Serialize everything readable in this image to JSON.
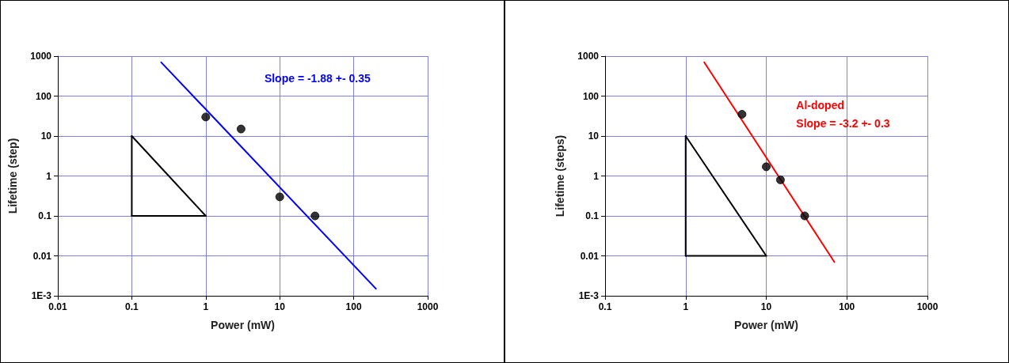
{
  "chart_data": [
    {
      "type": "scatter",
      "xlabel": "Power (mW)",
      "ylabel": "Lifetime (step)",
      "xlim": [
        0.01,
        1000
      ],
      "ylim": [
        0.001,
        1000
      ],
      "xticks": [
        0.01,
        0.1,
        1,
        10,
        100,
        1000
      ],
      "yticks": [
        {
          "value": 0.001,
          "label": "1E-3"
        },
        0.01,
        0.1,
        1,
        10,
        100,
        1000
      ],
      "log": "xy",
      "grid": true,
      "series": [
        {
          "color": "#000000",
          "marker": "circle",
          "x": [
            1,
            3,
            10,
            30
          ],
          "values": [
            30,
            15,
            0.3,
            0.1
          ]
        },
        {
          "type": "line",
          "color": "#0000ff",
          "marker": "none",
          "line_style": "solid",
          "x": [
            0.25,
            200
          ],
          "values": [
            700,
            0.0015
          ]
        },
        {
          "type": "line",
          "color": "#000000",
          "marker": "none",
          "line_style": "solid",
          "x": [
            0.1,
            1
          ],
          "values": [
            10,
            0.1
          ]
        },
        {
          "type": "line",
          "color": "#000000",
          "marker": "none",
          "line_style": "solid",
          "x": [
            0.1,
            1
          ],
          "values": [
            0.1,
            0.1
          ]
        },
        {
          "type": "line",
          "color": "#000000",
          "marker": "none",
          "line_style": "solid",
          "x": [
            0.1,
            0.1
          ],
          "values": [
            10,
            0.1
          ]
        }
      ],
      "annotations": [
        "Slope = -1.88 +- 0.35"
      ]
    },
    {
      "type": "scatter",
      "xlabel": "Power (mW)",
      "ylabel": "Lifetime (steps)",
      "xlim": [
        0.1,
        1000
      ],
      "ylim": [
        0.001,
        1000
      ],
      "xticks": [
        0.1,
        1,
        10,
        100,
        1000
      ],
      "yticks": [
        {
          "value": 0.001,
          "label": "1E-3"
        },
        0.01,
        0.1,
        1,
        10,
        100,
        1000
      ],
      "log": "xy",
      "grid": true,
      "series": [
        {
          "color": "#000000",
          "marker": "circle",
          "x": [
            5,
            10,
            15,
            30
          ],
          "values": [
            35,
            1.7,
            0.8,
            0.1
          ]
        },
        {
          "type": "line",
          "color": "#ff0000",
          "marker": "none",
          "line_style": "solid",
          "x": [
            1.7,
            70
          ],
          "values": [
            700,
            0.007
          ]
        },
        {
          "type": "line",
          "color": "#000000",
          "marker": "none",
          "line_style": "solid",
          "x": [
            1,
            10
          ],
          "values": [
            10,
            0.01
          ]
        },
        {
          "type": "line",
          "color": "#000000",
          "marker": "none",
          "line_style": "solid",
          "x": [
            1,
            10
          ],
          "values": [
            0.01,
            0.01
          ]
        },
        {
          "type": "line",
          "color": "#000000",
          "marker": "none",
          "line_style": "solid",
          "x": [
            1,
            1
          ],
          "values": [
            10,
            0.01
          ]
        }
      ],
      "annotations": [
        "Al-doped",
        "Slope = -3.2 +- 0.3"
      ]
    }
  ]
}
